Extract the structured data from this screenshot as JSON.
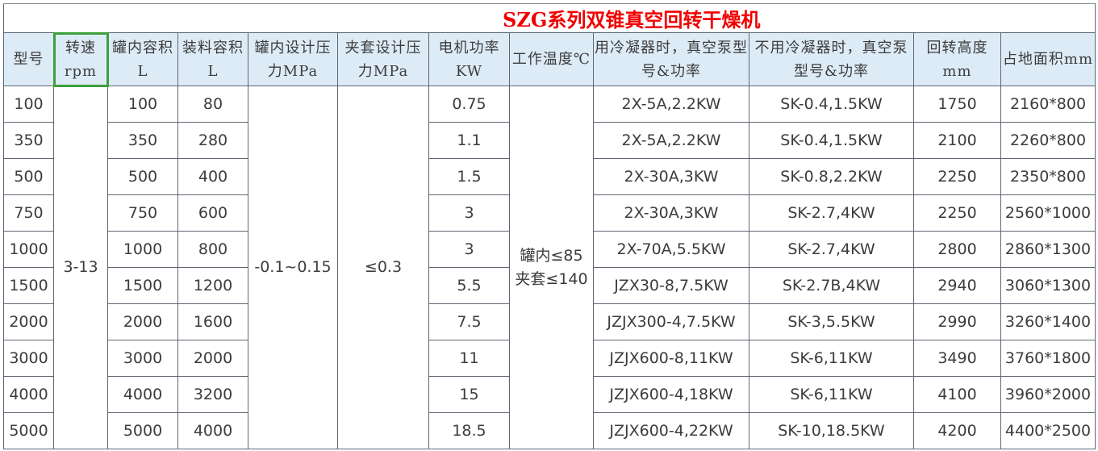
{
  "title": "SZG系列双锥真空回转干燥机",
  "headers": [
    "型号",
    "转速rpm",
    "罐内容积L",
    "装料容积L",
    "罐内设计压力MPa",
    "夹套设计压力MPa",
    "电机功率KW",
    "工作温度℃",
    "用冷凝器时，真空泵型号&功率",
    "不用冷凝器时，真空泵型号&功率",
    "回转高度mm",
    "占地面积mm"
  ],
  "merged": {
    "speed": "3-13",
    "vessel_pressure": "-0.1~0.15",
    "jacket_pressure": "≤0.3",
    "temperature": "罐内≤85 夹套≤140"
  },
  "rows": [
    [
      "100",
      "100",
      "80",
      "0.75",
      "2X-5A,2.2KW",
      "SK-0.4,1.5KW",
      "1750",
      "2160*800"
    ],
    [
      "350",
      "350",
      "280",
      "1.1",
      "2X-5A,2.2KW",
      "SK-0.4,1.5KW",
      "2100",
      "2260*800"
    ],
    [
      "500",
      "500",
      "400",
      "1.5",
      "2X-30A,3KW",
      "SK-0.8,2.2KW",
      "2250",
      "2350*800"
    ],
    [
      "750",
      "750",
      "600",
      "3",
      "2X-30A,3KW",
      "SK-2.7,4KW",
      "2250",
      "2560*1000"
    ],
    [
      "1000",
      "1000",
      "800",
      "3",
      "2X-70A,5.5KW",
      "SK-2.7,4KW",
      "2800",
      "2860*1300"
    ],
    [
      "1500",
      "1500",
      "1200",
      "5.5",
      "JZX30-8,7.5KW",
      "SK-2.7B,4KW",
      "2940",
      "3060*1300"
    ],
    [
      "2000",
      "2000",
      "1600",
      "7.5",
      "JZJX300-4,7.5KW",
      "SK-3,5.5KW",
      "2990",
      "3260*1400"
    ],
    [
      "3000",
      "3000",
      "2000",
      "11",
      "JZJX600-8,11KW",
      "SK-6,11KW",
      "3490",
      "3760*1800"
    ],
    [
      "4000",
      "4000",
      "3200",
      "15",
      "JZJX600-4,18KW",
      "SK-6,11KW",
      "4100",
      "3960*2000"
    ],
    [
      "5000",
      "5000",
      "4000",
      "18.5",
      "JZJX600-4,22KW",
      "SK-10,18.5KW",
      "4200",
      "4400*2500"
    ]
  ]
}
